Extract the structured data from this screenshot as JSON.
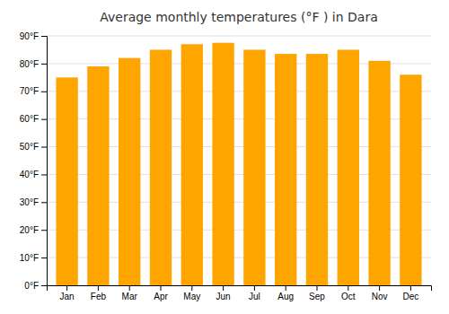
{
  "chart_data": {
    "type": "bar",
    "title": "Average monthly temperatures (°F ) in Dara",
    "categories": [
      "Jan",
      "Feb",
      "Mar",
      "Apr",
      "May",
      "Jun",
      "Jul",
      "Aug",
      "Sep",
      "Oct",
      "Nov",
      "Dec"
    ],
    "values": [
      75,
      79,
      82,
      85,
      87,
      87.5,
      85,
      83.5,
      83.5,
      85,
      81,
      76
    ],
    "color": "#FFA500",
    "ylim": [
      0,
      90
    ],
    "yticks": [
      {
        "value": 0,
        "label": "0°F"
      },
      {
        "value": 10,
        "label": "10°F"
      },
      {
        "value": 20,
        "label": "20°F"
      },
      {
        "value": 30,
        "label": "30°F"
      },
      {
        "value": 40,
        "label": "40°F"
      },
      {
        "value": 50,
        "label": "50°F"
      },
      {
        "value": 60,
        "label": "60°F"
      },
      {
        "value": 70,
        "label": "70°F"
      },
      {
        "value": 80,
        "label": "80°F"
      },
      {
        "value": 90,
        "label": "90°F"
      }
    ],
    "grid": true
  }
}
